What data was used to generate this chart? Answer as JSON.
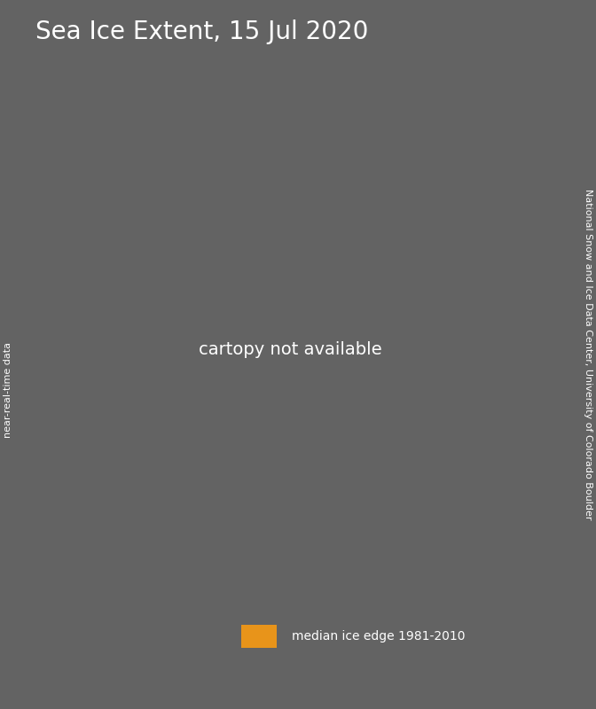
{
  "title": "Sea Ice Extent, 15 Jul 2020",
  "title_fontsize": 20,
  "title_color": "#ffffff",
  "background_color": "#636363",
  "map_ocean_color": "#1b3f7a",
  "map_ice_color": "#ffffff",
  "map_land_color": "#7d7d7d",
  "median_edge_color": "#e8941a",
  "legend_text": "median ice edge 1981-2010",
  "legend_fontsize": 10,
  "left_label": "near-real-time data",
  "right_label": "National Snow and Ice Data Center, University of Colorado Boulder",
  "label_fontsize": 8,
  "label_color": "#ffffff",
  "grid_color": "#aaaaaa",
  "grid_alpha": 0.4,
  "legend_box_color": "#e8941a",
  "legend_bg_color": "#1b3f7a"
}
